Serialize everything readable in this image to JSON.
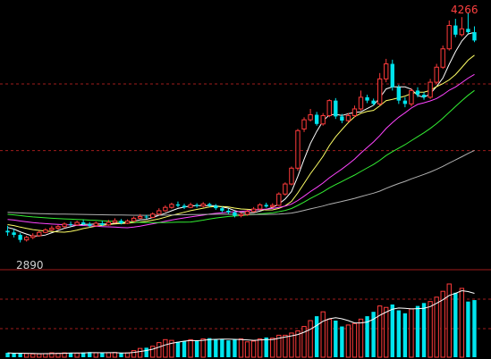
{
  "chart_data": {
    "type": "candlestick",
    "annotations": {
      "high_label": "4266",
      "low_label": "2890"
    },
    "price_range": [
      2780,
      4300
    ],
    "ref_lines": [
      3840,
      3440
    ],
    "colors": {
      "up": "#ff3b3b",
      "down": "#00e5ee",
      "ma5": "#ffffff",
      "ma10": "#ffff66",
      "ma20": "#ff44ff",
      "ma30": "#33ee33",
      "ma60": "#b0b0b0",
      "vol_ma": "#ffffff",
      "grid": "#a01c1c",
      "label_high": "#ff4040",
      "label_low": "#d0d0d0"
    },
    "candles": [
      [
        2960,
        2950,
        2990,
        2930
      ],
      [
        2950,
        2935,
        2970,
        2920
      ],
      [
        2935,
        2905,
        2945,
        2890
      ],
      [
        2905,
        2920,
        2930,
        2895
      ],
      [
        2920,
        2930,
        2945,
        2910
      ],
      [
        2930,
        2950,
        2960,
        2925
      ],
      [
        2950,
        2965,
        2975,
        2945
      ],
      [
        2965,
        2975,
        2990,
        2960
      ],
      [
        2975,
        2985,
        2995,
        2965
      ],
      [
        2985,
        3000,
        3010,
        2975
      ],
      [
        3000,
        2995,
        3015,
        2985
      ],
      [
        2995,
        3010,
        3020,
        2990
      ],
      [
        3010,
        3000,
        3025,
        2992
      ],
      [
        3000,
        2990,
        3012,
        2980
      ],
      [
        2990,
        3005,
        3015,
        2985
      ],
      [
        3005,
        2995,
        3020,
        2988
      ],
      [
        2995,
        3010,
        3025,
        2990
      ],
      [
        3010,
        3020,
        3035,
        3005
      ],
      [
        3020,
        3005,
        3030,
        2998
      ],
      [
        3005,
        3018,
        3028,
        3000
      ],
      [
        3018,
        3035,
        3045,
        3012
      ],
      [
        3035,
        3045,
        3060,
        3030
      ],
      [
        3045,
        3040,
        3055,
        3032
      ],
      [
        3040,
        3060,
        3070,
        3035
      ],
      [
        3060,
        3080,
        3095,
        3055
      ],
      [
        3080,
        3100,
        3112,
        3072
      ],
      [
        3100,
        3118,
        3128,
        3092
      ],
      [
        3118,
        3110,
        3135,
        3100
      ],
      [
        3110,
        3100,
        3122,
        3090
      ],
      [
        3100,
        3115,
        3128,
        3095
      ],
      [
        3115,
        3108,
        3125,
        3098
      ],
      [
        3108,
        3120,
        3132,
        3100
      ],
      [
        3120,
        3110,
        3128,
        3102
      ],
      [
        3110,
        3095,
        3120,
        3085
      ],
      [
        3095,
        3080,
        3105,
        3070
      ],
      [
        3080,
        3070,
        3092,
        3060
      ],
      [
        3070,
        3050,
        3080,
        3040
      ],
      [
        3050,
        3058,
        3070,
        3040
      ],
      [
        3058,
        3075,
        3085,
        3050
      ],
      [
        3075,
        3090,
        3102,
        3070
      ],
      [
        3090,
        3115,
        3125,
        3085
      ],
      [
        3115,
        3105,
        3128,
        3098
      ],
      [
        3105,
        3112,
        3125,
        3098
      ],
      [
        3112,
        3180,
        3190,
        3108
      ],
      [
        3180,
        3240,
        3250,
        3170
      ],
      [
        3240,
        3335,
        3345,
        3232
      ],
      [
        3335,
        3560,
        3570,
        3320
      ],
      [
        3570,
        3625,
        3640,
        3552
      ],
      [
        3625,
        3655,
        3690,
        3615
      ],
      [
        3655,
        3600,
        3672,
        3590
      ],
      [
        3600,
        3650,
        3665,
        3590
      ],
      [
        3650,
        3740,
        3748,
        3640
      ],
      [
        3740,
        3645,
        3755,
        3630
      ],
      [
        3645,
        3620,
        3660,
        3605
      ],
      [
        3620,
        3650,
        3665,
        3610
      ],
      [
        3650,
        3690,
        3710,
        3640
      ],
      [
        3690,
        3760,
        3800,
        3680
      ],
      [
        3760,
        3740,
        3775,
        3725
      ],
      [
        3740,
        3720,
        3752,
        3710
      ],
      [
        3720,
        3870,
        3905,
        3710
      ],
      [
        3870,
        3960,
        3990,
        3850
      ],
      [
        3960,
        3820,
        3985,
        3800
      ],
      [
        3820,
        3740,
        3835,
        3720
      ],
      [
        3740,
        3720,
        3760,
        3700
      ],
      [
        3720,
        3800,
        3815,
        3705
      ],
      [
        3800,
        3775,
        3820,
        3760
      ],
      [
        3775,
        3760,
        3790,
        3745
      ],
      [
        3760,
        3850,
        3870,
        3750
      ],
      [
        3850,
        3940,
        3960,
        3840
      ],
      [
        3940,
        4050,
        4070,
        3930
      ],
      [
        4050,
        4190,
        4220,
        4040
      ],
      [
        4190,
        4135,
        4230,
        4120
      ],
      [
        4135,
        4170,
        4240,
        4125
      ],
      [
        4170,
        4150,
        4266,
        4140
      ],
      [
        4150,
        4100,
        4185,
        4090
      ]
    ],
    "volume_max": 1000,
    "volumes": [
      60,
      50,
      55,
      50,
      45,
      45,
      50,
      60,
      55,
      60,
      60,
      55,
      65,
      70,
      60,
      55,
      60,
      65,
      55,
      60,
      90,
      120,
      130,
      150,
      200,
      240,
      230,
      210,
      220,
      240,
      230,
      250,
      260,
      240,
      250,
      230,
      240,
      250,
      210,
      220,
      250,
      270,
      260,
      300,
      300,
      330,
      360,
      420,
      500,
      560,
      620,
      520,
      500,
      420,
      440,
      460,
      520,
      560,
      620,
      700,
      680,
      720,
      640,
      600,
      660,
      700,
      740,
      760,
      820,
      900,
      1000,
      880,
      940,
      760,
      780
    ]
  }
}
